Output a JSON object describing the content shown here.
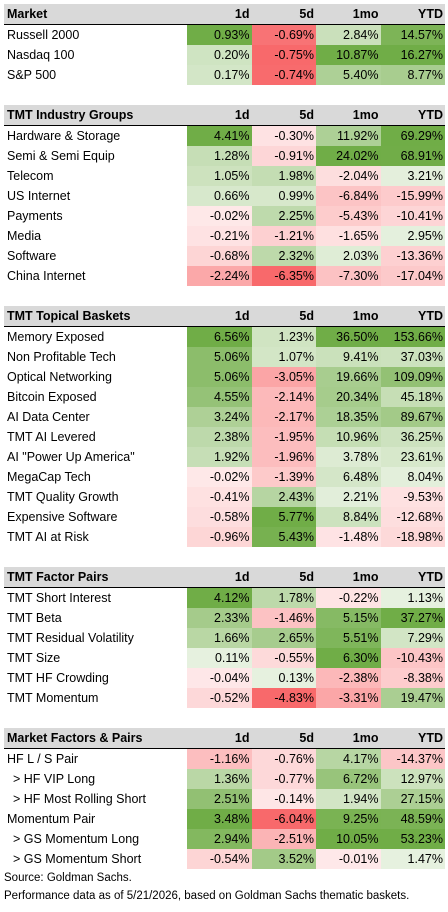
{
  "sections": [
    {
      "title": "Market",
      "columns": [
        "1d",
        "5d",
        "1mo",
        "YTD"
      ],
      "rows": [
        {
          "name": "Russell 2000",
          "values": [
            "0.93%",
            "-0.69%",
            "2.84%",
            "14.57%"
          ]
        },
        {
          "name": "Nasdaq 100",
          "values": [
            "0.20%",
            "-0.75%",
            "10.87%",
            "16.27%"
          ]
        },
        {
          "name": "S&P 500",
          "values": [
            "0.17%",
            "-0.74%",
            "5.40%",
            "8.77%"
          ]
        }
      ]
    },
    {
      "title": "TMT Industry Groups",
      "columns": [
        "1d",
        "5d",
        "1mo",
        "YTD"
      ],
      "rows": [
        {
          "name": "Hardware & Storage",
          "values": [
            "4.41%",
            "-0.30%",
            "11.92%",
            "69.29%"
          ]
        },
        {
          "name": "Semi & Semi Equip",
          "values": [
            "1.28%",
            "-0.91%",
            "24.02%",
            "68.91%"
          ]
        },
        {
          "name": "Telecom",
          "values": [
            "1.05%",
            "1.98%",
            "-2.04%",
            "3.21%"
          ]
        },
        {
          "name": "US Internet",
          "values": [
            "0.66%",
            "0.99%",
            "-6.84%",
            "-15.99%"
          ]
        },
        {
          "name": "Payments",
          "values": [
            "-0.02%",
            "2.25%",
            "-5.43%",
            "-10.41%"
          ]
        },
        {
          "name": "Media",
          "values": [
            "-0.21%",
            "-1.21%",
            "-1.65%",
            "2.95%"
          ]
        },
        {
          "name": "Software",
          "values": [
            "-0.68%",
            "2.32%",
            "2.03%",
            "-13.36%"
          ]
        },
        {
          "name": "China Internet",
          "values": [
            "-2.24%",
            "-6.35%",
            "-7.30%",
            "-17.04%"
          ]
        }
      ]
    },
    {
      "title": "TMT Topical Baskets",
      "columns": [
        "1d",
        "5d",
        "1mo",
        "YTD"
      ],
      "rows": [
        {
          "name": "Memory Exposed",
          "values": [
            "6.56%",
            "1.23%",
            "36.50%",
            "153.66%"
          ]
        },
        {
          "name": "Non Profitable Tech",
          "values": [
            "5.06%",
            "1.07%",
            "9.41%",
            "37.03%"
          ]
        },
        {
          "name": "Optical Networking",
          "values": [
            "5.06%",
            "-3.05%",
            "19.66%",
            "109.09%"
          ]
        },
        {
          "name": "Bitcoin Exposed",
          "values": [
            "4.55%",
            "-2.14%",
            "20.34%",
            "45.18%"
          ]
        },
        {
          "name": "AI Data Center",
          "values": [
            "3.24%",
            "-2.17%",
            "18.35%",
            "89.67%"
          ]
        },
        {
          "name": "TMT AI Levered",
          "values": [
            "2.38%",
            "-1.95%",
            "10.96%",
            "36.25%"
          ]
        },
        {
          "name": "AI \"Power Up America\"",
          "values": [
            "1.92%",
            "-1.96%",
            "3.78%",
            "23.61%"
          ]
        },
        {
          "name": "MegaCap Tech",
          "values": [
            "-0.02%",
            "-1.39%",
            "6.48%",
            "8.04%"
          ]
        },
        {
          "name": "TMT Quality Growth",
          "values": [
            "-0.41%",
            "2.43%",
            "2.21%",
            "-9.53%"
          ]
        },
        {
          "name": "Expensive Software",
          "values": [
            "-0.58%",
            "5.77%",
            "8.84%",
            "-12.68%"
          ]
        },
        {
          "name": "TMT AI at Risk",
          "values": [
            "-0.96%",
            "5.43%",
            "-1.48%",
            "-18.98%"
          ]
        }
      ]
    },
    {
      "title": "TMT Factor Pairs",
      "columns": [
        "1d",
        "5d",
        "1mo",
        "YTD"
      ],
      "rows": [
        {
          "name": "TMT Short Interest",
          "values": [
            "4.12%",
            "1.78%",
            "-0.22%",
            "1.13%"
          ]
        },
        {
          "name": "TMT Beta",
          "values": [
            "2.33%",
            "-1.46%",
            "5.15%",
            "37.27%"
          ]
        },
        {
          "name": "TMT Residual Volatility",
          "values": [
            "1.66%",
            "2.65%",
            "5.51%",
            "7.29%"
          ]
        },
        {
          "name": "TMT Size",
          "values": [
            "0.11%",
            "-0.55%",
            "6.30%",
            "-10.43%"
          ]
        },
        {
          "name": "TMT HF Crowding",
          "values": [
            "-0.04%",
            "0.13%",
            "-2.38%",
            "-8.38%"
          ]
        },
        {
          "name": "TMT Momentum",
          "values": [
            "-0.52%",
            "-4.83%",
            "-3.31%",
            "19.47%"
          ]
        }
      ]
    },
    {
      "title": "Market Factors & Pairs",
      "columns": [
        "1d",
        "5d",
        "1mo",
        "YTD"
      ],
      "rows": [
        {
          "name": "HF L / S Pair",
          "values": [
            "-1.16%",
            "-0.76%",
            "4.17%",
            "-14.37%"
          ]
        },
        {
          "name": "> HF VIP Long",
          "values": [
            "1.36%",
            "-0.77%",
            "6.72%",
            "12.97%"
          ]
        },
        {
          "name": "> HF Most Rolling Short",
          "values": [
            "2.51%",
            "-0.14%",
            "1.94%",
            "27.15%"
          ]
        },
        {
          "name": "Momentum Pair",
          "values": [
            "3.48%",
            "-6.04%",
            "9.25%",
            "48.59%"
          ]
        },
        {
          "name": "> GS Momentum Long",
          "values": [
            "2.94%",
            "-2.51%",
            "10.05%",
            "53.23%"
          ]
        },
        {
          "name": "> GS Momentum Short",
          "values": [
            "-0.54%",
            "3.52%",
            "-0.01%",
            "1.47%"
          ]
        }
      ]
    }
  ],
  "source": "Source: Goldman Sachs.",
  "note": "Performance data as of 5/21/2026, based on Goldman Sachs thematic baskets."
}
